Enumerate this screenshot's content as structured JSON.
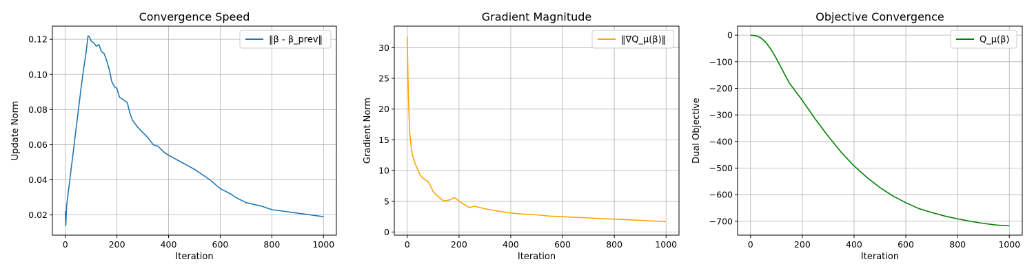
{
  "chart_data": [
    {
      "type": "line",
      "title": "Convergence Speed",
      "xlabel": "Iteration",
      "ylabel": "Update Norm",
      "xlim": [
        -50,
        1050
      ],
      "ylim": [
        0.0085,
        0.1275
      ],
      "xticks": [
        0,
        200,
        400,
        600,
        800,
        1000
      ],
      "xtick_labels": [
        "0",
        "200",
        "400",
        "600",
        "800",
        "1000"
      ],
      "yticks": [
        0.02,
        0.04,
        0.06,
        0.08,
        0.1,
        0.12
      ],
      "ytick_labels": [
        "0.02",
        "0.04",
        "0.06",
        "0.08",
        "0.10",
        "0.12"
      ],
      "grid": true,
      "legend": "top-right",
      "series": [
        {
          "name": "‖β - β_prev‖",
          "color": "#1f77b4",
          "x": [
            0,
            2,
            5,
            10,
            20,
            30,
            40,
            50,
            60,
            70,
            80,
            88,
            95,
            100,
            110,
            120,
            130,
            140,
            150,
            160,
            170,
            180,
            190,
            200,
            210,
            220,
            230,
            240,
            250,
            260,
            280,
            300,
            320,
            340,
            360,
            380,
            400,
            450,
            500,
            540,
            560,
            600,
            640,
            660,
            700,
            760,
            800,
            850,
            900,
            950,
            1000
          ],
          "y": [
            0.022,
            0.014,
            0.025,
            0.031,
            0.043,
            0.055,
            0.067,
            0.079,
            0.091,
            0.102,
            0.112,
            0.122,
            0.121,
            0.119,
            0.118,
            0.116,
            0.117,
            0.113,
            0.112,
            0.108,
            0.103,
            0.096,
            0.093,
            0.092,
            0.087,
            0.086,
            0.085,
            0.084,
            0.078,
            0.074,
            0.07,
            0.067,
            0.064,
            0.06,
            0.059,
            0.056,
            0.054,
            0.05,
            0.046,
            0.042,
            0.04,
            0.035,
            0.032,
            0.03,
            0.027,
            0.025,
            0.023,
            0.022,
            0.021,
            0.02,
            0.019
          ]
        }
      ]
    },
    {
      "type": "line",
      "title": "Gradient Magnitude",
      "xlabel": "Iteration",
      "ylabel": "Gradient Norm",
      "xlim": [
        -50,
        1050
      ],
      "ylim": [
        -0.5,
        33.5
      ],
      "xticks": [
        0,
        200,
        400,
        600,
        800,
        1000
      ],
      "xtick_labels": [
        "0",
        "200",
        "400",
        "600",
        "800",
        "1000"
      ],
      "yticks": [
        0,
        5,
        10,
        15,
        20,
        25,
        30
      ],
      "ytick_labels": [
        "0",
        "5",
        "10",
        "15",
        "20",
        "25",
        "30"
      ],
      "grid": true,
      "legend": "top-right",
      "series": [
        {
          "name": "‖∇Q_μ(β)‖",
          "color": "#ffa500",
          "x": [
            0,
            3,
            6,
            10,
            15,
            20,
            30,
            40,
            50,
            60,
            70,
            80,
            90,
            100,
            110,
            120,
            130,
            140,
            150,
            160,
            170,
            180,
            190,
            200,
            220,
            240,
            260,
            300,
            350,
            400,
            450,
            500,
            550,
            600,
            650,
            700,
            750,
            800,
            850,
            900,
            950,
            1000
          ],
          "y": [
            31.8,
            25,
            20,
            16,
            14,
            12.5,
            11.2,
            10.2,
            9.3,
            8.8,
            8.5,
            8.2,
            7.5,
            6.6,
            6.1,
            5.8,
            5.4,
            5.1,
            5.1,
            5.2,
            5.3,
            5.6,
            5.4,
            5.0,
            4.5,
            4.0,
            4.2,
            3.8,
            3.4,
            3.1,
            2.9,
            2.8,
            2.6,
            2.5,
            2.4,
            2.3,
            2.2,
            2.1,
            2.0,
            1.9,
            1.8,
            1.7
          ]
        }
      ]
    },
    {
      "type": "line",
      "title": "Objective Convergence",
      "xlabel": "Iteration",
      "ylabel": "Dual Objective",
      "xlim": [
        -50,
        1050
      ],
      "ylim": [
        -752,
        34
      ],
      "xticks": [
        0,
        200,
        400,
        600,
        800,
        1000
      ],
      "xtick_labels": [
        "0",
        "200",
        "400",
        "600",
        "800",
        "1000"
      ],
      "yticks": [
        0,
        -100,
        -200,
        -300,
        -400,
        -500,
        -600,
        -700
      ],
      "ytick_labels": [
        "0",
        "−100",
        "−200",
        "−300",
        "−400",
        "−500",
        "−600",
        "−700"
      ],
      "grid": true,
      "legend": "top-right",
      "series": [
        {
          "name": "Q_μ(β)",
          "color": "#008000",
          "x": [
            0,
            20,
            40,
            60,
            80,
            100,
            120,
            150,
            200,
            250,
            300,
            350,
            400,
            450,
            500,
            550,
            600,
            650,
            700,
            750,
            800,
            850,
            900,
            950,
            1000
          ],
          "y": [
            0,
            -2,
            -10,
            -28,
            -55,
            -88,
            -125,
            -180,
            -245,
            -315,
            -380,
            -440,
            -492,
            -535,
            -573,
            -605,
            -630,
            -652,
            -667,
            -680,
            -691,
            -700,
            -708,
            -714,
            -717
          ]
        }
      ]
    }
  ]
}
